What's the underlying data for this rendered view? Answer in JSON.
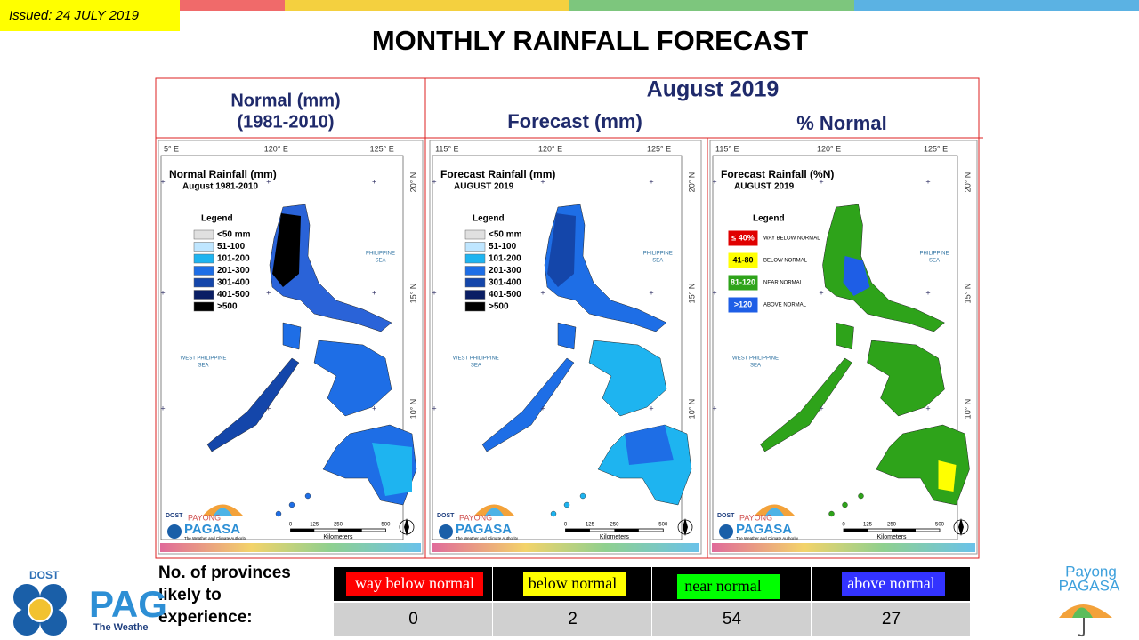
{
  "header": {
    "issued": "Issued: 24 JULY 2019",
    "title": "MONTHLY RAINFALL FORECAST"
  },
  "columns": {
    "normal": [
      "Normal (mm)",
      "(1981-2010)"
    ],
    "month": "August 2019",
    "forecast": "Forecast (mm)",
    "percent": "% Normal"
  },
  "maps": [
    {
      "title": "Normal Rainfall (mm)",
      "subtitle": "August 1981-2010",
      "lon_labels": [
        "5° E",
        "120° E",
        "125° E"
      ],
      "lat_labels": [
        "20° N",
        "15° N",
        "10° N"
      ],
      "legend_title": "Legend",
      "legend": [
        {
          "label": "<50 mm",
          "color": "#e0e0e0"
        },
        {
          "label": "51-100",
          "color": "#bfe6ff"
        },
        {
          "label": "101-200",
          "color": "#1eb4f0"
        },
        {
          "label": "201-300",
          "color": "#1e6ee6"
        },
        {
          "label": "301-400",
          "color": "#1446aa"
        },
        {
          "label": "401-500",
          "color": "#0a1e64"
        },
        {
          "label": ">500",
          "color": "#000000"
        }
      ]
    },
    {
      "title": "Forecast Rainfall (mm)",
      "subtitle": "AUGUST 2019",
      "lon_labels": [
        "115° E",
        "120° E",
        "125° E"
      ],
      "lat_labels": [
        "20° N",
        "15° N",
        "10° N"
      ],
      "legend_title": "Legend",
      "legend": [
        {
          "label": "<50 mm",
          "color": "#e0e0e0"
        },
        {
          "label": "51-100",
          "color": "#bfe6ff"
        },
        {
          "label": "101-200",
          "color": "#1eb4f0"
        },
        {
          "label": "201-300",
          "color": "#1e6ee6"
        },
        {
          "label": "301-400",
          "color": "#1446aa"
        },
        {
          "label": "401-500",
          "color": "#0a1e64"
        },
        {
          "label": ">500",
          "color": "#000000"
        }
      ]
    },
    {
      "title": "Forecast Rainfall (%N)",
      "subtitle": "AUGUST 2019",
      "lon_labels": [
        "115° E",
        "120° E",
        "125° E"
      ],
      "lat_labels": [
        "20° N",
        "15° N",
        "10° N"
      ],
      "legend_title": "Legend",
      "legend": [
        {
          "label": "≤ 40%",
          "description": "WAY BELOW NORMAL",
          "color": "#e00000"
        },
        {
          "label": "41-80",
          "description": "BELOW NORMAL",
          "color": "#ffff00"
        },
        {
          "label": "81-120",
          "description": "NEAR NORMAL",
          "color": "#2ea31a"
        },
        {
          "label": ">120",
          "description": "ABOVE NORMAL",
          "color": "#1e5ee6"
        }
      ]
    }
  ],
  "map_common": {
    "sea_east": [
      "PHILIPPINE",
      "SEA"
    ],
    "sea_west": [
      "WEST PHILIPPINE",
      "SEA"
    ],
    "scale": [
      "0",
      "125",
      "250",
      "500"
    ],
    "scale_unit": "Kilometers",
    "logo": [
      "DOST",
      "PAYONG",
      "PAGASA",
      "The Weather and Climate Authority"
    ]
  },
  "table": {
    "row_label": [
      "No. of provinces",
      "likely  to",
      "experience:"
    ],
    "headers": [
      {
        "label": "way below normal",
        "color": "#ff0000",
        "text_color": "#ffffff"
      },
      {
        "label": "below normal",
        "color": "#ffff00",
        "text_color": "#000000"
      },
      {
        "label": "near normal",
        "color": "#00ff00",
        "text_color": "#000000"
      },
      {
        "label": "above normal",
        "color": "#3333ff",
        "text_color": "#ffffff"
      }
    ],
    "counts": [
      0,
      2,
      54,
      27
    ]
  },
  "footer": {
    "logo_left": [
      "DOST",
      "PAG",
      "The Weathe"
    ],
    "logo_right": [
      "Payong",
      "PAGASA"
    ]
  }
}
